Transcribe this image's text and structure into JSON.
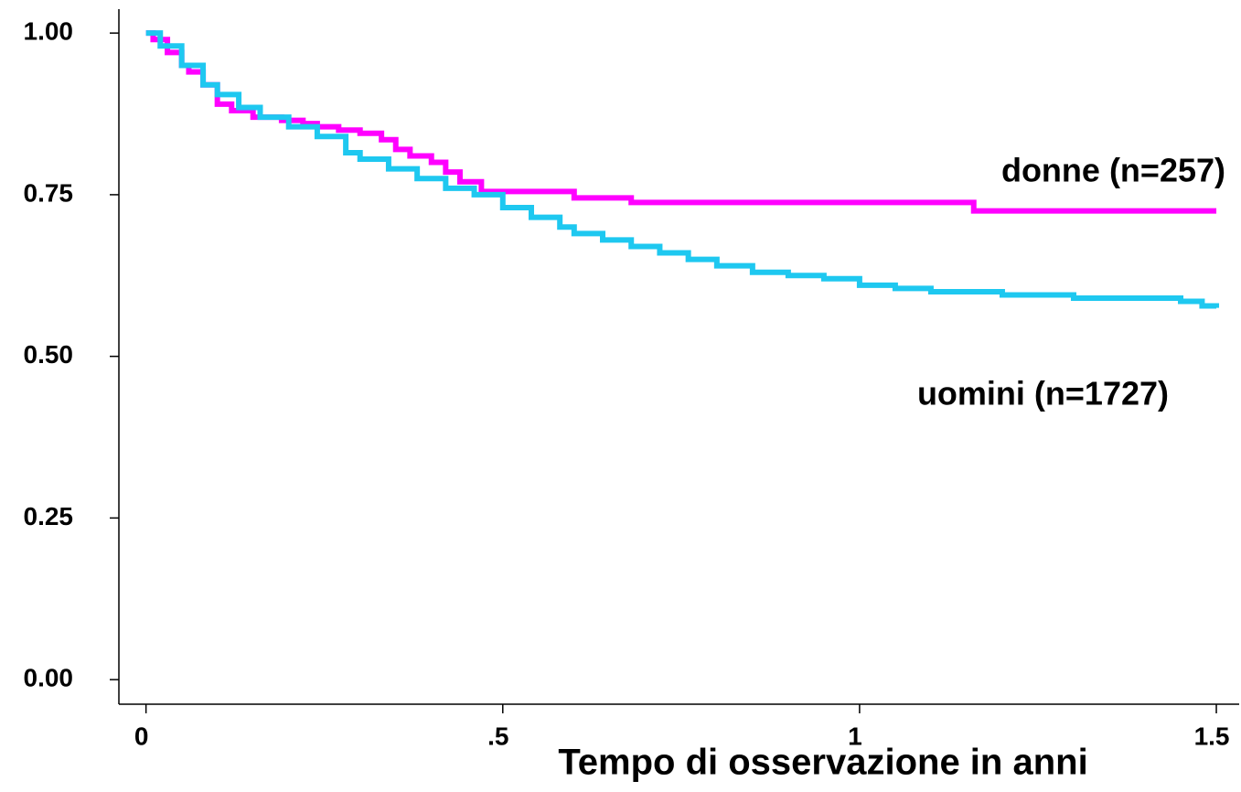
{
  "chart_data": {
    "type": "step",
    "xlabel": "Tempo di osservazione in anni",
    "xlim": [
      -0.038,
      1.532
    ],
    "ylim": [
      -0.038,
      1.037
    ],
    "xticks": [
      0,
      {
        "value": 0.5,
        "label": ".5"
      },
      1,
      1.5
    ],
    "yticks": [
      {
        "value": 0,
        "label": "0.00"
      },
      0.25,
      {
        "value": 0.5,
        "label": "0.50"
      },
      0.75,
      {
        "value": 1,
        "label": "1.00"
      }
    ],
    "grid": false,
    "series": [
      {
        "name": "donne (n=257)",
        "color": "#ff00ff",
        "x": [
          0,
          0.01,
          0.03,
          0.05,
          0.06,
          0.08,
          0.1,
          0.12,
          0.15,
          0.19,
          0.22,
          0.24,
          0.27,
          0.3,
          0.33,
          0.35,
          0.37,
          0.4,
          0.42,
          0.44,
          0.47,
          0.6,
          0.68,
          1.16,
          1.5
        ],
        "values": [
          1.0,
          0.99,
          0.97,
          0.95,
          0.94,
          0.92,
          0.89,
          0.88,
          0.87,
          0.865,
          0.86,
          0.855,
          0.85,
          0.845,
          0.835,
          0.82,
          0.81,
          0.8,
          0.785,
          0.77,
          0.755,
          0.745,
          0.738,
          0.725,
          0.725
        ]
      },
      {
        "name": "uomini (n=1727)",
        "color": "#1ec8f0",
        "x": [
          0,
          0.02,
          0.05,
          0.08,
          0.1,
          0.13,
          0.16,
          0.2,
          0.24,
          0.28,
          0.3,
          0.34,
          0.38,
          0.42,
          0.46,
          0.5,
          0.54,
          0.58,
          0.6,
          0.64,
          0.68,
          0.72,
          0.76,
          0.8,
          0.85,
          0.9,
          0.95,
          1.0,
          1.05,
          1.1,
          1.2,
          1.3,
          1.45,
          1.48,
          1.5
        ],
        "values": [
          1.0,
          0.98,
          0.95,
          0.92,
          0.905,
          0.885,
          0.87,
          0.855,
          0.84,
          0.815,
          0.805,
          0.79,
          0.775,
          0.76,
          0.75,
          0.73,
          0.715,
          0.7,
          0.69,
          0.68,
          0.67,
          0.66,
          0.65,
          0.64,
          0.63,
          0.625,
          0.62,
          0.61,
          0.605,
          0.6,
          0.595,
          0.59,
          0.585,
          0.578,
          0.575
        ]
      }
    ]
  }
}
